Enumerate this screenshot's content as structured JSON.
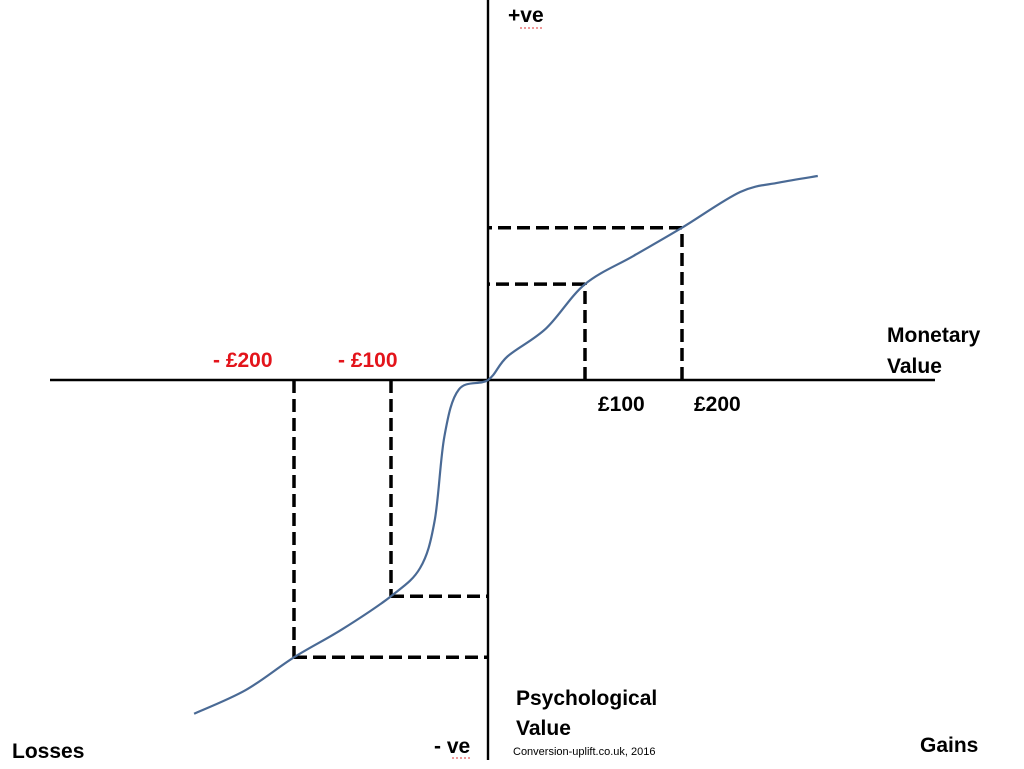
{
  "chart_data": {
    "type": "line",
    "y_axis_top_label": "+ve",
    "y_axis_bottom_label": "- ve",
    "x_axis_label_line1": "Monetary",
    "x_axis_label_line2": "Value",
    "y_axis_label_line1": "Psychological",
    "y_axis_label_line2": "Value",
    "left_corner_label": "Losses",
    "right_corner_label": "Gains",
    "credit": "Conversion-uplift.co.uk, 2016",
    "tick_labels": {
      "neg200": "- £200",
      "neg100": "- £100",
      "pos100": "£100",
      "pos200": "£200"
    },
    "marked_points": [
      {
        "x": -200,
        "y": -295
      },
      {
        "x": -100,
        "y": -230
      },
      {
        "x": 100,
        "y": 102
      },
      {
        "x": 200,
        "y": 162
      }
    ],
    "series": [
      {
        "values": [
          [
            -303,
            -355
          ],
          [
            -250,
            -330
          ],
          [
            -200,
            -295
          ],
          [
            -150,
            -265
          ],
          [
            -100,
            -230
          ],
          [
            -70,
            -200
          ],
          [
            -55,
            -150
          ],
          [
            -45,
            -60
          ],
          [
            -30,
            -10
          ],
          [
            0,
            0
          ],
          [
            20,
            25
          ],
          [
            60,
            55
          ],
          [
            100,
            102
          ],
          [
            150,
            132
          ],
          [
            200,
            162
          ],
          [
            260,
            200
          ],
          [
            300,
            210
          ],
          [
            340,
            217
          ]
        ]
      }
    ],
    "xlim": [
      -420,
      440
    ],
    "ylim": [
      -360,
      370
    ],
    "grid": false,
    "colors": {
      "curve": "#4a6a95",
      "negative_labels": "#e3141b",
      "axes": "#000000"
    }
  }
}
